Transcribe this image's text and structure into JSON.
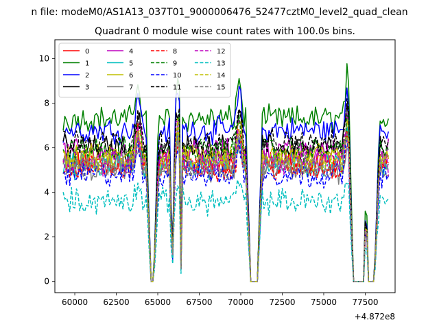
{
  "suptitle": "n file: modeM0/AS1A13_037T01_9000006476_52477cztM0_level2_quad_clean",
  "chart_data": {
    "type": "line",
    "title": "Quadrant 0 module wise count rates with 100.0s bins.",
    "xlabel": "",
    "ylabel": "",
    "offset_text": "+4.872e8",
    "xlim": [
      58800,
      79300
    ],
    "ylim": [
      -0.5,
      10.85
    ],
    "xticks": [
      60000,
      62500,
      65000,
      67500,
      70000,
      72500,
      75000,
      77500
    ],
    "xtick_labels": [
      "60000",
      "62500",
      "65000",
      "67500",
      "70000",
      "72500",
      "75000",
      "77500"
    ],
    "yticks": [
      0,
      2,
      4,
      6,
      8,
      10
    ],
    "ytick_labels": [
      "0",
      "2",
      "4",
      "6",
      "8",
      "10"
    ],
    "x_start": 59300,
    "x_end": 78900,
    "bin": 100,
    "gaps": [
      [
        64600,
        64750
      ],
      [
        70600,
        71000
      ],
      [
        76800,
        77400
      ],
      [
        77700,
        78050
      ]
    ],
    "spikes": [
      63800,
      66200,
      69900,
      76400,
      77500
    ],
    "legend": {
      "placement": "top-left",
      "ncol": 4
    },
    "series": [
      {
        "name": "0",
        "color": "#ff0000",
        "dash": "solid",
        "mean": 5.3
      },
      {
        "name": "1",
        "color": "#008000",
        "dash": "solid",
        "mean": 7.3
      },
      {
        "name": "2",
        "color": "#0000ff",
        "dash": "solid",
        "mean": 6.8
      },
      {
        "name": "3",
        "color": "#000000",
        "dash": "solid",
        "mean": 6.0
      },
      {
        "name": "4",
        "color": "#bf00bf",
        "dash": "solid",
        "mean": 5.8
      },
      {
        "name": "5",
        "color": "#00bfbf",
        "dash": "solid",
        "mean": 5.2
      },
      {
        "name": "6",
        "color": "#bfbf00",
        "dash": "solid",
        "mean": 5.6
      },
      {
        "name": "7",
        "color": "#808080",
        "dash": "solid",
        "mean": 5.0
      },
      {
        "name": "8",
        "color": "#ff0000",
        "dash": "dashed",
        "mean": 5.1
      },
      {
        "name": "9",
        "color": "#008000",
        "dash": "dashed",
        "mean": 5.9
      },
      {
        "name": "10",
        "color": "#0000ff",
        "dash": "dashed",
        "mean": 4.8
      },
      {
        "name": "11",
        "color": "#000000",
        "dash": "dashed",
        "mean": 6.2
      },
      {
        "name": "12",
        "color": "#bf00bf",
        "dash": "dashed",
        "mean": 5.4
      },
      {
        "name": "13",
        "color": "#00bfbf",
        "dash": "dashed",
        "mean": 3.6
      },
      {
        "name": "14",
        "color": "#bfbf00",
        "dash": "dashed",
        "mean": 5.5
      },
      {
        "name": "15",
        "color": "#808080",
        "dash": "dashed",
        "mean": 5.2
      }
    ]
  }
}
